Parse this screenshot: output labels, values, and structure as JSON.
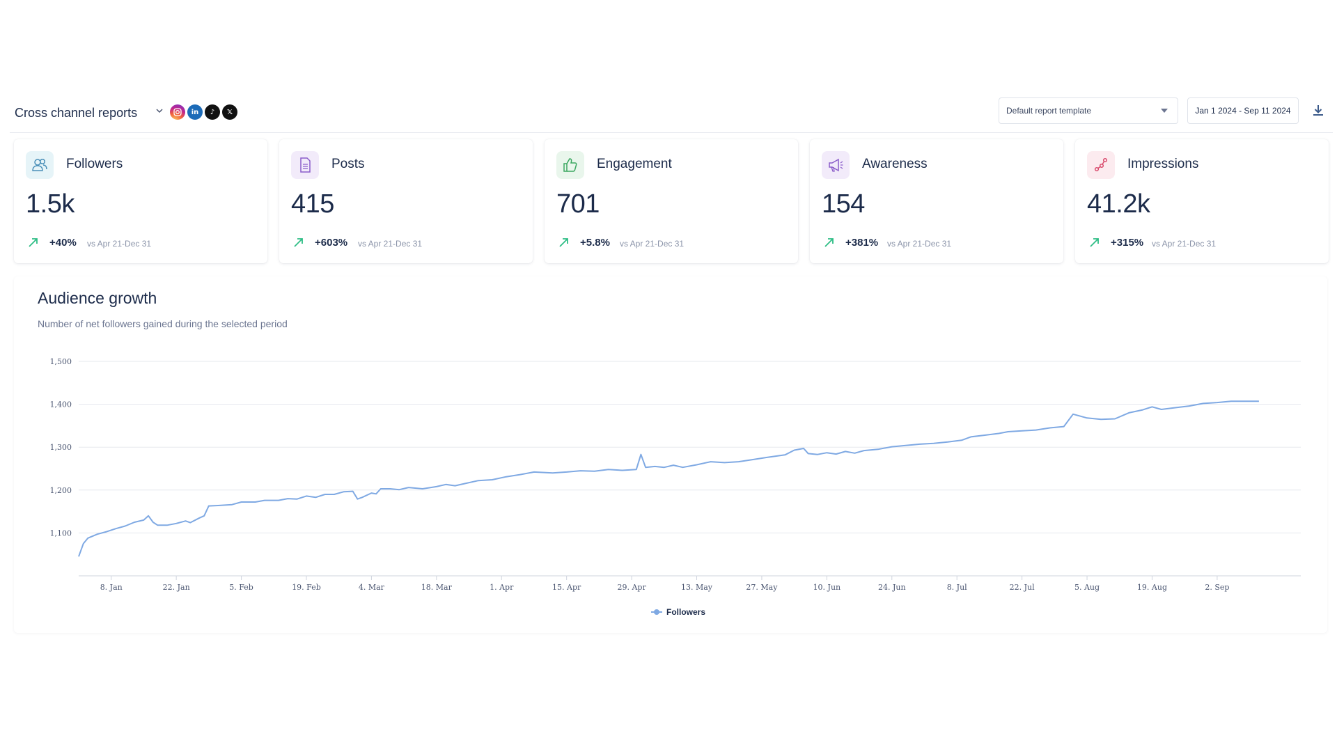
{
  "header": {
    "title": "Cross channel reports",
    "networks": [
      {
        "name": "instagram-icon",
        "glyph": "◎"
      },
      {
        "name": "linkedin-icon",
        "glyph": "in"
      },
      {
        "name": "tiktok-icon",
        "glyph": "♪"
      },
      {
        "name": "x-icon",
        "glyph": "𝕏"
      }
    ],
    "template_select": "Default report template",
    "date_range": "Jan 1 2024 - Sep 11 2024"
  },
  "colors": {
    "accent_green": "#2ebd85",
    "line": "#7fa9e3",
    "followers_icon_bg": "#e6f4f8",
    "posts_icon_bg": "#f2ebfa",
    "engagement_icon_bg": "#e9f6ec",
    "awareness_icon_bg": "#f2ebfa",
    "impressions_icon_bg": "#fcebef"
  },
  "cards": [
    {
      "label": "Followers",
      "value": "1.5k",
      "change": "+40%",
      "compare": "vs Apr 21-Dec 31",
      "icon": "users-icon"
    },
    {
      "label": "Posts",
      "value": "415",
      "change": "+603%",
      "compare": "vs Apr 21-Dec 31",
      "icon": "document-icon"
    },
    {
      "label": "Engagement",
      "value": "701",
      "change": "+5.8%",
      "compare": "vs Apr 21-Dec 31",
      "icon": "thumbs-up-icon"
    },
    {
      "label": "Awareness",
      "value": "154",
      "change": "+381%",
      "compare": "vs Apr 21-Dec 31",
      "icon": "megaphone-icon"
    },
    {
      "label": "Impressions",
      "value": "41.2k",
      "change": "+315%",
      "compare": "vs Apr 21-Dec 31",
      "icon": "share-icon"
    }
  ],
  "chart": {
    "title": "Audience growth",
    "subtitle": "Number of net followers gained during the selected period"
  },
  "chart_data": {
    "type": "line",
    "title": "Audience growth",
    "subtitle": "Number of net followers gained during the selected period",
    "x_ticks": [
      "8. Jan",
      "22. Jan",
      "5. Feb",
      "19. Feb",
      "4. Mar",
      "18. Mar",
      "1. Apr",
      "15. Apr",
      "29. Apr",
      "13. May",
      "27. May",
      "10. Jun",
      "24. Jun",
      "8. Jul",
      "22. Jul",
      "5. Aug",
      "19. Aug",
      "2. Sep"
    ],
    "y_ticks": [
      1100,
      1200,
      1300,
      1400,
      1500
    ],
    "ylim": [
      1000,
      1500
    ],
    "xlim": [
      "2024-01-01",
      "2024-09-20"
    ],
    "grid": true,
    "legend": "bottom-center",
    "series": [
      {
        "name": "Followers",
        "points": [
          [
            "2024-01-01",
            1045
          ],
          [
            "2024-01-02",
            1075
          ],
          [
            "2024-01-03",
            1088
          ],
          [
            "2024-01-05",
            1097
          ],
          [
            "2024-01-07",
            1103
          ],
          [
            "2024-01-09",
            1110
          ],
          [
            "2024-01-11",
            1116
          ],
          [
            "2024-01-13",
            1125
          ],
          [
            "2024-01-15",
            1130
          ],
          [
            "2024-01-16",
            1140
          ],
          [
            "2024-01-17",
            1125
          ],
          [
            "2024-01-18",
            1118
          ],
          [
            "2024-01-20",
            1118
          ],
          [
            "2024-01-22",
            1122
          ],
          [
            "2024-01-24",
            1128
          ],
          [
            "2024-01-25",
            1124
          ],
          [
            "2024-01-27",
            1135
          ],
          [
            "2024-01-28",
            1140
          ],
          [
            "2024-01-29",
            1163
          ],
          [
            "2024-01-31",
            1164
          ],
          [
            "2024-02-03",
            1166
          ],
          [
            "2024-02-05",
            1172
          ],
          [
            "2024-02-08",
            1172
          ],
          [
            "2024-02-10",
            1176
          ],
          [
            "2024-02-13",
            1176
          ],
          [
            "2024-02-15",
            1180
          ],
          [
            "2024-02-17",
            1179
          ],
          [
            "2024-02-19",
            1186
          ],
          [
            "2024-02-21",
            1183
          ],
          [
            "2024-02-23",
            1190
          ],
          [
            "2024-02-25",
            1190
          ],
          [
            "2024-02-27",
            1196
          ],
          [
            "2024-02-29",
            1197
          ],
          [
            "2024-03-01",
            1179
          ],
          [
            "2024-03-02",
            1183
          ],
          [
            "2024-03-04",
            1193
          ],
          [
            "2024-03-05",
            1191
          ],
          [
            "2024-03-06",
            1203
          ],
          [
            "2024-03-08",
            1203
          ],
          [
            "2024-03-10",
            1201
          ],
          [
            "2024-03-12",
            1206
          ],
          [
            "2024-03-15",
            1203
          ],
          [
            "2024-03-18",
            1208
          ],
          [
            "2024-03-20",
            1213
          ],
          [
            "2024-03-22",
            1210
          ],
          [
            "2024-03-24",
            1215
          ],
          [
            "2024-03-27",
            1222
          ],
          [
            "2024-03-30",
            1224
          ],
          [
            "2024-04-02",
            1231
          ],
          [
            "2024-04-05",
            1236
          ],
          [
            "2024-04-08",
            1242
          ],
          [
            "2024-04-12",
            1240
          ],
          [
            "2024-04-15",
            1242
          ],
          [
            "2024-04-18",
            1245
          ],
          [
            "2024-04-21",
            1244
          ],
          [
            "2024-04-24",
            1248
          ],
          [
            "2024-04-27",
            1246
          ],
          [
            "2024-04-30",
            1248
          ],
          [
            "2024-05-01",
            1283
          ],
          [
            "2024-05-02",
            1253
          ],
          [
            "2024-05-04",
            1255
          ],
          [
            "2024-05-06",
            1253
          ],
          [
            "2024-05-08",
            1258
          ],
          [
            "2024-05-10",
            1253
          ],
          [
            "2024-05-13",
            1259
          ],
          [
            "2024-05-16",
            1266
          ],
          [
            "2024-05-19",
            1264
          ],
          [
            "2024-05-22",
            1266
          ],
          [
            "2024-05-25",
            1271
          ],
          [
            "2024-05-28",
            1276
          ],
          [
            "2024-06-01",
            1282
          ],
          [
            "2024-06-03",
            1293
          ],
          [
            "2024-06-05",
            1297
          ],
          [
            "2024-06-06",
            1285
          ],
          [
            "2024-06-08",
            1283
          ],
          [
            "2024-06-10",
            1287
          ],
          [
            "2024-06-12",
            1284
          ],
          [
            "2024-06-14",
            1290
          ],
          [
            "2024-06-16",
            1286
          ],
          [
            "2024-06-18",
            1292
          ],
          [
            "2024-06-21",
            1295
          ],
          [
            "2024-06-24",
            1301
          ],
          [
            "2024-06-27",
            1304
          ],
          [
            "2024-06-30",
            1307
          ],
          [
            "2024-07-03",
            1309
          ],
          [
            "2024-07-06",
            1312
          ],
          [
            "2024-07-09",
            1316
          ],
          [
            "2024-07-11",
            1324
          ],
          [
            "2024-07-14",
            1328
          ],
          [
            "2024-07-17",
            1332
          ],
          [
            "2024-07-19",
            1336
          ],
          [
            "2024-07-22",
            1338
          ],
          [
            "2024-07-25",
            1340
          ],
          [
            "2024-07-28",
            1345
          ],
          [
            "2024-07-31",
            1348
          ],
          [
            "2024-08-02",
            1377
          ],
          [
            "2024-08-05",
            1368
          ],
          [
            "2024-08-08",
            1365
          ],
          [
            "2024-08-11",
            1366
          ],
          [
            "2024-08-14",
            1380
          ],
          [
            "2024-08-17",
            1387
          ],
          [
            "2024-08-19",
            1394
          ],
          [
            "2024-08-21",
            1388
          ],
          [
            "2024-08-24",
            1392
          ],
          [
            "2024-08-27",
            1396
          ],
          [
            "2024-08-30",
            1402
          ],
          [
            "2024-09-02",
            1404
          ],
          [
            "2024-09-05",
            1407
          ],
          [
            "2024-09-08",
            1407
          ],
          [
            "2024-09-11",
            1407
          ]
        ]
      }
    ],
    "legend_entries": [
      "Followers"
    ]
  }
}
